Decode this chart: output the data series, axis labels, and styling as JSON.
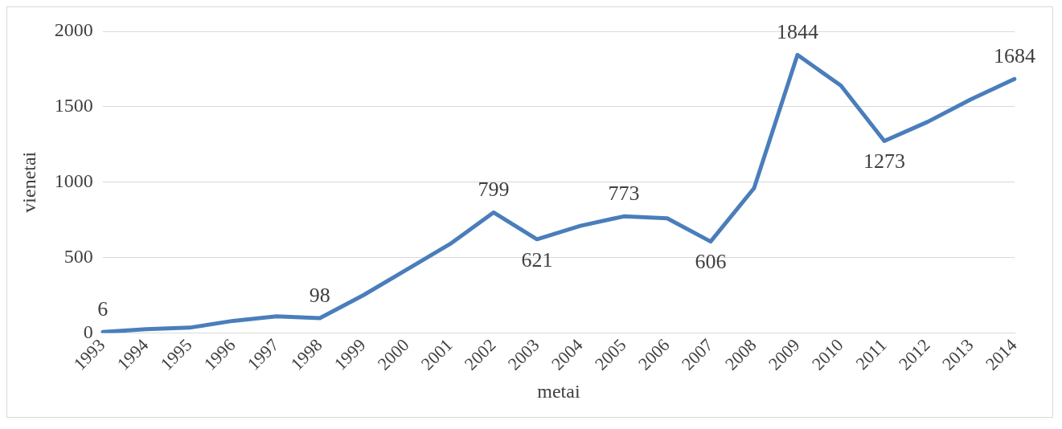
{
  "chart_data": {
    "type": "line",
    "xlabel": "metai",
    "ylabel": "vienetai",
    "categories": [
      "1993",
      "1994",
      "1995",
      "1996",
      "1997",
      "1998",
      "1999",
      "2000",
      "2001",
      "2002",
      "2003",
      "2004",
      "2005",
      "2006",
      "2007",
      "2008",
      "2009",
      "2010",
      "2011",
      "2012",
      "2013",
      "2014"
    ],
    "series": [
      {
        "color": "#4a7ebb",
        "values": [
          6,
          25,
          35,
          80,
          110,
          98,
          250,
          420,
          590,
          799,
          621,
          710,
          773,
          760,
          606,
          960,
          1844,
          1640,
          1273,
          1400,
          1550,
          1684
        ],
        "value_labels": [
          "6",
          null,
          null,
          null,
          null,
          "98",
          null,
          null,
          null,
          "799",
          "621",
          null,
          "773",
          null,
          "606",
          null,
          "1844",
          null,
          "1273",
          null,
          null,
          "1684"
        ]
      }
    ],
    "ylim": [
      0,
      2000
    ],
    "yticks": [
      0,
      500,
      1000,
      1500,
      2000
    ],
    "grid": "y",
    "legend": false,
    "marker": "none",
    "line_style": "solid"
  }
}
